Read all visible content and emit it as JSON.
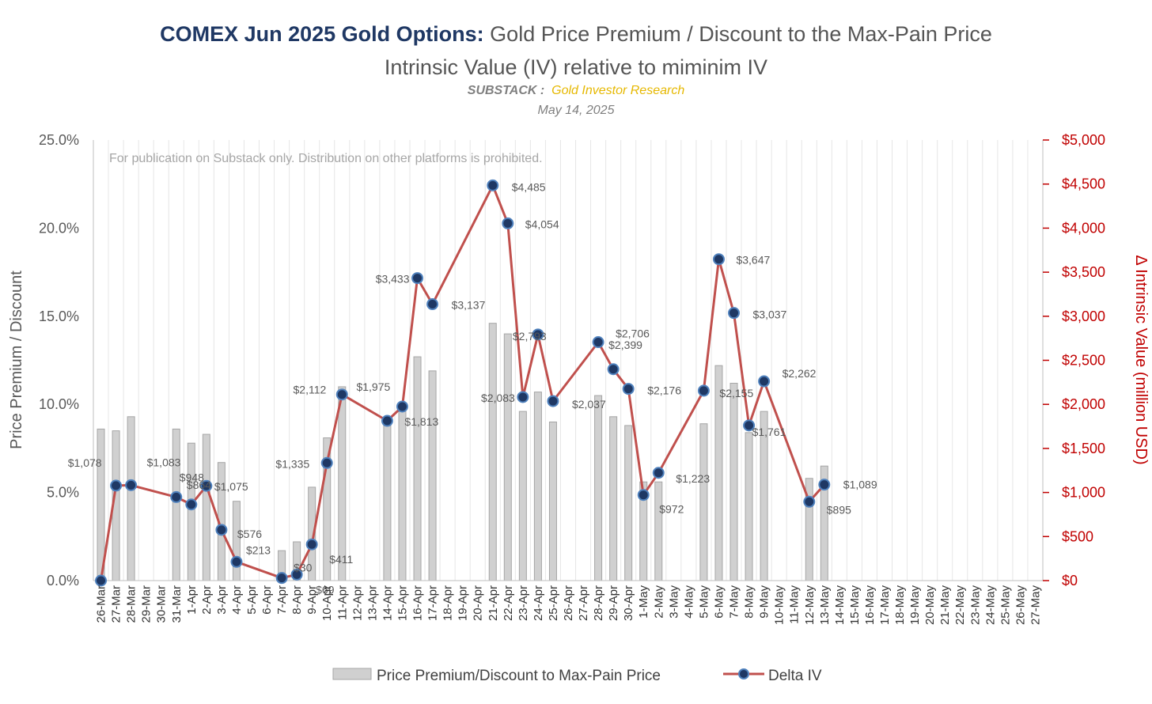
{
  "header": {
    "title_bold": "COMEX Jun 2025 Gold Options:",
    "title_rest": "Gold Price Premium / Discount to the Max-Pain Price",
    "subtitle": "Intrinsic Value (IV) relative to miminim IV",
    "substack_label": "SUBSTACK :",
    "substack_name": "Gold Investor Research",
    "date": "May 14, 2025"
  },
  "chart_data": {
    "type": "bar",
    "note": "For publication on Substack only. Distribution on other platforms is prohibited.",
    "ylabel": "Price Premium / Discount",
    "y2label": "Δ Intrinsic Value (million USD)",
    "ylim": [
      0,
      0.25
    ],
    "y2lim": [
      0,
      5000
    ],
    "y_ticks": [
      "0.0%",
      "5.0%",
      "10.0%",
      "15.0%",
      "20.0%",
      "25.0%"
    ],
    "y2_ticks": [
      "$0",
      "$500",
      "$1,000",
      "$1,500",
      "$2,000",
      "$2,500",
      "$3,000",
      "$3,500",
      "$4,000",
      "$4,500",
      "$5,000"
    ],
    "categories": [
      "26-Mar",
      "27-Mar",
      "28-Mar",
      "29-Mar",
      "30-Mar",
      "31-Mar",
      "1-Apr",
      "2-Apr",
      "3-Apr",
      "4-Apr",
      "5-Apr",
      "6-Apr",
      "7-Apr",
      "8-Apr",
      "9-Apr",
      "10-Apr",
      "11-Apr",
      "12-Apr",
      "13-Apr",
      "14-Apr",
      "15-Apr",
      "16-Apr",
      "17-Apr",
      "18-Apr",
      "19-Apr",
      "20-Apr",
      "21-Apr",
      "22-Apr",
      "23-Apr",
      "24-Apr",
      "25-Apr",
      "26-Apr",
      "27-Apr",
      "28-Apr",
      "29-Apr",
      "30-Apr",
      "1-May",
      "2-May",
      "3-May",
      "4-May",
      "5-May",
      "6-May",
      "7-May",
      "8-May",
      "9-May",
      "10-May",
      "11-May",
      "12-May",
      "13-May",
      "14-May",
      "15-May",
      "16-May",
      "17-May",
      "18-May",
      "19-May",
      "20-May",
      "21-May",
      "22-May",
      "23-May",
      "24-May",
      "25-May",
      "26-May",
      "27-May"
    ],
    "series": [
      {
        "name": "Price Premium/Discount to Max-Pain Price",
        "type": "bar",
        "axis": "left",
        "color": "#D0D0D0",
        "values": [
          0.086,
          0.085,
          0.093,
          null,
          null,
          0.086,
          0.078,
          0.083,
          0.067,
          0.045,
          null,
          null,
          0.017,
          0.022,
          0.053,
          0.081,
          0.11,
          null,
          null,
          0.09,
          0.1,
          0.127,
          0.119,
          null,
          null,
          null,
          0.146,
          0.14,
          0.096,
          0.107,
          0.09,
          null,
          null,
          0.105,
          0.093,
          0.088,
          0.056,
          0.056,
          null,
          null,
          0.089,
          0.122,
          0.112,
          0.084,
          0.096,
          null,
          null,
          0.058,
          0.065,
          null,
          null,
          null,
          null,
          null,
          null,
          null,
          null,
          null,
          null,
          null,
          null,
          null,
          null
        ]
      },
      {
        "name": "Delta IV",
        "type": "line",
        "axis": "right",
        "color": "#C0504D",
        "values": [
          0,
          1078,
          1083,
          null,
          null,
          948,
          864,
          1075,
          576,
          213,
          null,
          null,
          30,
          69,
          411,
          1335,
          2112,
          null,
          null,
          1813,
          1975,
          3433,
          3137,
          null,
          null,
          null,
          4485,
          4054,
          2083,
          2793,
          2037,
          null,
          null,
          2706,
          2399,
          2176,
          972,
          1223,
          null,
          null,
          2155,
          3647,
          3037,
          1761,
          2262,
          null,
          null,
          895,
          1089,
          null,
          null,
          null,
          null,
          null,
          null,
          null,
          null,
          null,
          null,
          null,
          null,
          null,
          null
        ],
        "labels": [
          null,
          "$1,078",
          "$1,083",
          null,
          null,
          "$948",
          "$864",
          "$1,075",
          "$576",
          "$213",
          null,
          null,
          "$30",
          "$69",
          "$411",
          "$1,335",
          "$2,112",
          null,
          null,
          "$1,813",
          "$1,975",
          "$3,433",
          "$3,137",
          null,
          null,
          null,
          "$4,485",
          "$4,054",
          "$2,083",
          "$2,793",
          "$2,037",
          null,
          null,
          "$2,706",
          "$2,399",
          "$2,176",
          "$972",
          "$1,223",
          null,
          null,
          "$2,155",
          "$3,647",
          "$3,037",
          "$1,761",
          "$2,262",
          null,
          null,
          "$895",
          "$1,089",
          null,
          null,
          null,
          null,
          null,
          null,
          null,
          null,
          null,
          null,
          null,
          null,
          null,
          null
        ]
      }
    ],
    "legend_position": "bottom"
  }
}
